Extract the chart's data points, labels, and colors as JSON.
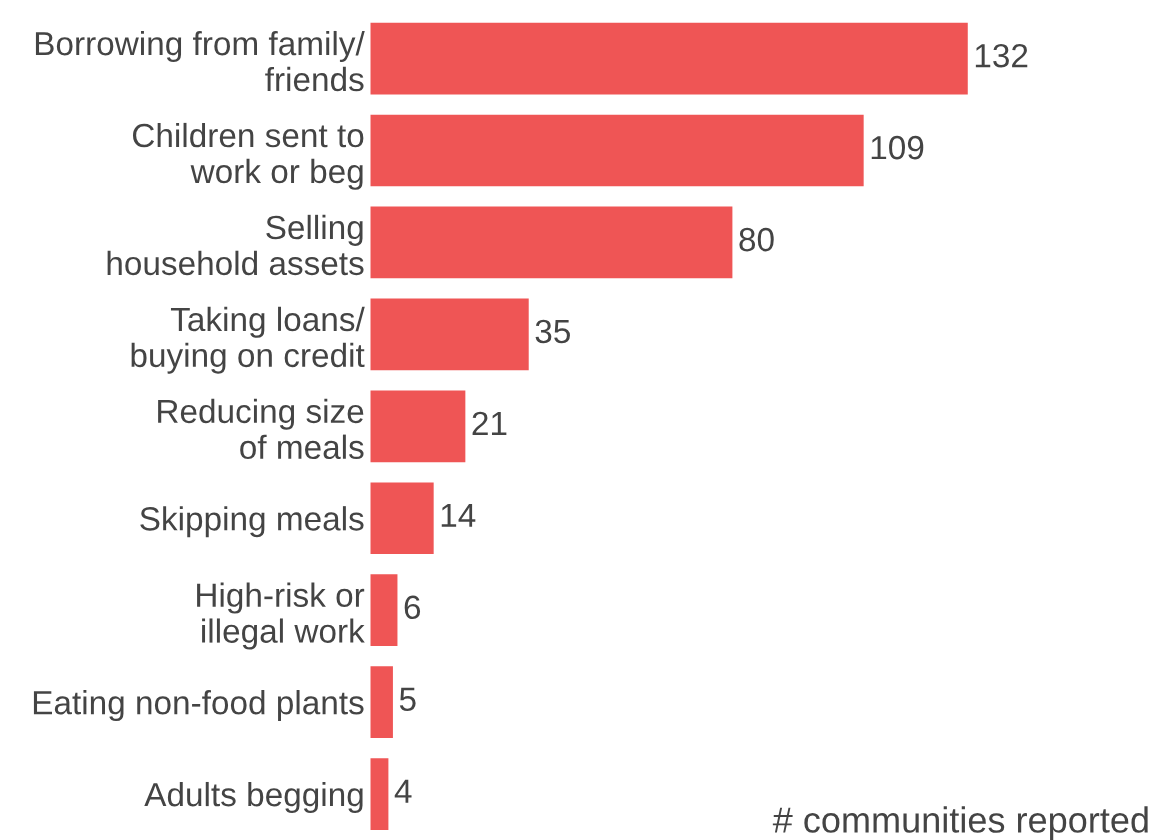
{
  "chart_data": {
    "type": "bar",
    "orientation": "horizontal",
    "xlabel": "# communities reported",
    "categories": [
      "Borrowing from family/\nfriends",
      "Children sent to\nwork or beg",
      "Selling\nhousehold assets",
      "Taking loans/\nbuying on credit",
      "Reducing size\nof meals",
      "Skipping meals",
      "High-risk or\nillegal work",
      "Eating non-food plants",
      "Adults begging"
    ],
    "values": [
      132,
      109,
      80,
      35,
      21,
      14,
      6,
      5,
      4
    ],
    "color": "#ef5555",
    "data_labels": true,
    "grid": false,
    "legend": false,
    "tick_labels": "y"
  }
}
